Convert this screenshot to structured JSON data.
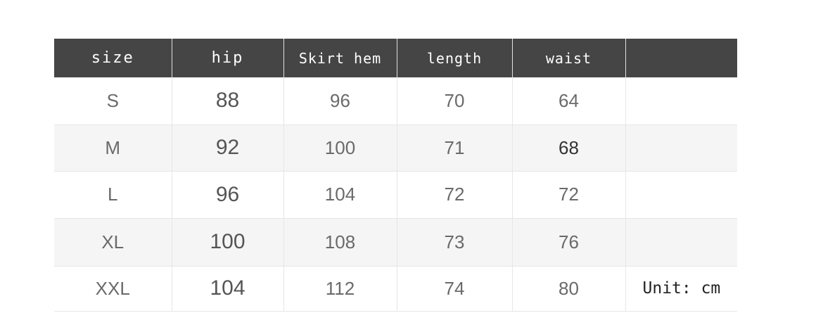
{
  "table": {
    "headers": [
      "size",
      "hip",
      "Skirt hem",
      "length",
      "waist",
      ""
    ],
    "rows": [
      [
        "S",
        "88",
        "96",
        "70",
        "64"
      ],
      [
        "M",
        "92",
        "100",
        "71",
        "68"
      ],
      [
        "L",
        "96",
        "104",
        "72",
        "72"
      ],
      [
        "XL",
        "100",
        "108",
        "73",
        "76"
      ],
      [
        "XXL",
        "104",
        "112",
        "74",
        "80"
      ]
    ],
    "unit_note": "Unit: cm",
    "header_color": "#454545",
    "alt_row_color": "#f5f5f5"
  }
}
